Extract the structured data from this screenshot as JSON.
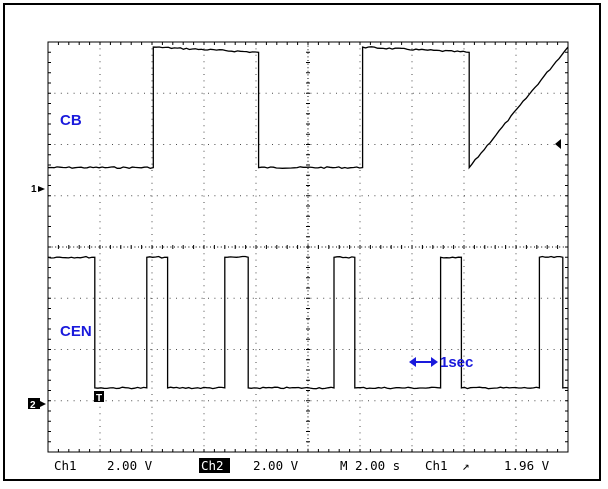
{
  "chart_data": {
    "type": "line",
    "x_unit": "s",
    "xlim": [
      0,
      20
    ],
    "ylim": [
      -4,
      4
    ],
    "series": [
      {
        "name": "CB",
        "ground_div": 1.5,
        "x": [
          0,
          4.05,
          4.05,
          8.1,
          8.1,
          12.1,
          12.1,
          16.2,
          16.2,
          20
        ],
        "y": [
          0.05,
          0.05,
          2.4,
          2.3,
          0.05,
          0.05,
          2.4,
          2.3,
          0.05,
          2.4
        ]
      },
      {
        "name": "CEN",
        "ground_div": -2.8,
        "x": [
          0,
          1.8,
          1.8,
          3.8,
          3.8,
          4.6,
          4.6,
          6.8,
          6.8,
          7.7,
          7.7,
          11.0,
          11.0,
          11.8,
          11.8,
          15.1,
          15.1,
          15.9,
          15.9,
          18.9,
          18.9,
          19.8,
          19.8,
          20
        ],
        "y": [
          2.6,
          2.6,
          0.05,
          0.05,
          2.6,
          2.6,
          0.05,
          0.05,
          2.6,
          2.6,
          0.05,
          0.05,
          2.6,
          2.6,
          0.05,
          0.05,
          2.6,
          2.6,
          0.05,
          0.05,
          2.6,
          2.6,
          0.05,
          0.05
        ]
      }
    ],
    "annotations": [
      "1sec"
    ],
    "channel_markers": [
      "1",
      "2"
    ],
    "trigger_marker": "T",
    "readout": {
      "ch1_label": "Ch1",
      "ch1_scale": "2.00 V",
      "ch2_label": "Ch2",
      "ch2_scale": "2.00 V",
      "timebase": "M 2.00 s",
      "trigger_source": "Ch1",
      "trigger_slope": "↗",
      "trigger_level": "1.96 V"
    },
    "grid": true,
    "colors": {
      "trace": "#000000",
      "label": "#1a1adc",
      "grid": "#000000"
    }
  }
}
